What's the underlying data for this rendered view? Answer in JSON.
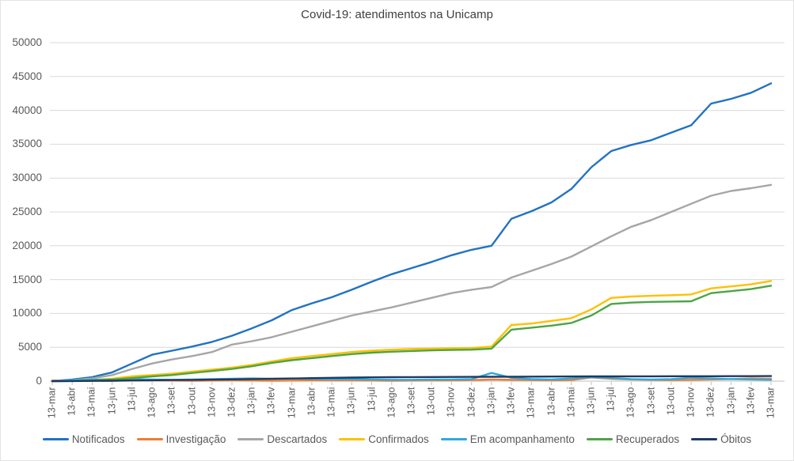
{
  "title": "Covid-19: atendimentos na Unicamp",
  "axis_color": "#BFBFBF",
  "grid_color": "#D9D9D9",
  "chart_data": {
    "type": "line",
    "title": "Covid-19: atendimentos na Unicamp",
    "xlabel": "",
    "ylabel": "",
    "grid": "horizontal",
    "legend_position": "bottom",
    "ylim": [
      0,
      50000
    ],
    "y_ticks": [
      0,
      5000,
      10000,
      15000,
      20000,
      25000,
      30000,
      35000,
      40000,
      45000,
      50000
    ],
    "categories": [
      "13-mar",
      "13-abr",
      "13-mai",
      "13-jun",
      "13-jul",
      "13-ago",
      "13-set",
      "13-out",
      "13-nov",
      "13-dez",
      "13-jan",
      "13-fev",
      "13-mar",
      "13-abr",
      "13-mai",
      "13-jun",
      "13-jul",
      "13-ago",
      "13-set",
      "13-out",
      "13-nov",
      "13-dez",
      "13-jan",
      "13-fev",
      "13-mar",
      "13-abr",
      "13-mai",
      "13-jun",
      "13-jul",
      "13-ago",
      "13-set",
      "13-out",
      "13-nov",
      "13-dez",
      "13-jan",
      "13-fev",
      "13-mar"
    ],
    "series": [
      {
        "name": "Notificados",
        "color": "#2272C3",
        "values": [
          0,
          250,
          600,
          1300,
          2600,
          3900,
          4500,
          5100,
          5800,
          6700,
          7800,
          9000,
          10500,
          11500,
          12400,
          13500,
          14700,
          15800,
          16700,
          17600,
          18600,
          19400,
          20000,
          24000,
          25100,
          26400,
          28400,
          31600,
          34000,
          34900,
          35600,
          36700,
          37800,
          41000,
          41700,
          42600,
          44000
        ]
      },
      {
        "name": "Investigação",
        "color": "#ED7D31",
        "values": [
          80,
          120,
          60,
          50,
          80,
          100,
          80,
          60,
          80,
          100,
          80,
          60,
          80,
          100,
          120,
          100,
          80,
          60,
          80,
          100,
          120,
          150,
          250,
          200,
          150,
          120,
          150,
          550,
          350,
          250,
          200,
          150,
          200,
          250,
          300,
          400,
          350
        ]
      },
      {
        "name": "Descartados",
        "color": "#A6A6A6",
        "values": [
          0,
          150,
          400,
          900,
          1800,
          2600,
          3200,
          3700,
          4300,
          5400,
          5900,
          6500,
          7300,
          8100,
          8900,
          9700,
          10300,
          10900,
          11600,
          12300,
          13000,
          13500,
          13900,
          15300,
          16300,
          17300,
          18400,
          19900,
          21400,
          22800,
          23800,
          25000,
          26200,
          27400,
          28100,
          28500,
          29000
        ]
      },
      {
        "name": "Confirmados",
        "color": "#FFC000",
        "values": [
          0,
          50,
          150,
          350,
          700,
          900,
          1100,
          1400,
          1700,
          2000,
          2400,
          2900,
          3400,
          3700,
          4000,
          4300,
          4500,
          4650,
          4750,
          4800,
          4850,
          4900,
          5100,
          8300,
          8500,
          8900,
          9300,
          10600,
          12300,
          12500,
          12600,
          12700,
          12800,
          13700,
          14000,
          14300,
          14800
        ]
      },
      {
        "name": "Em acompanhamento",
        "color": "#2FA9DC",
        "values": [
          20,
          150,
          200,
          250,
          300,
          250,
          200,
          250,
          300,
          350,
          400,
          350,
          400,
          350,
          300,
          300,
          250,
          200,
          200,
          250,
          250,
          300,
          1200,
          500,
          300,
          250,
          400,
          600,
          450,
          300,
          250,
          300,
          500,
          400,
          300,
          250,
          200
        ]
      },
      {
        "name": "Recuperados",
        "color": "#4CA546",
        "values": [
          0,
          20,
          100,
          250,
          450,
          700,
          900,
          1200,
          1500,
          1800,
          2200,
          2700,
          3100,
          3400,
          3700,
          4000,
          4200,
          4350,
          4450,
          4550,
          4600,
          4650,
          4800,
          7600,
          7900,
          8200,
          8600,
          9700,
          11400,
          11600,
          11700,
          11750,
          11800,
          13000,
          13300,
          13600,
          14100
        ]
      },
      {
        "name": "Óbitos",
        "color": "#1F3864",
        "values": [
          0,
          10,
          30,
          60,
          100,
          130,
          160,
          190,
          220,
          260,
          300,
          340,
          390,
          440,
          490,
          530,
          560,
          580,
          600,
          610,
          620,
          630,
          640,
          660,
          670,
          680,
          690,
          700,
          705,
          710,
          715,
          720,
          725,
          730,
          735,
          740,
          750
        ]
      }
    ]
  }
}
